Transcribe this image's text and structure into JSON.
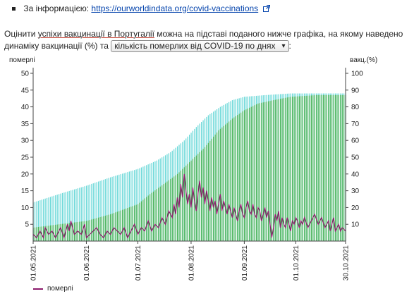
{
  "info": {
    "label": "За інформацією:",
    "link_text": "https://ourworldindata.org/covid-vaccinations"
  },
  "paragraph": {
    "part1": "Оцінити ",
    "link1": "успіхи вакцинації в Португалії",
    "part2": " можна на підставі поданого нижче графіка, на якому наведено динаміку вакцинації (%) та ",
    "select_value": "кількість померлих від COVID-19 по днях",
    "part3": ":"
  },
  "colors": {
    "deaths_line": "#8b1a6b",
    "vacc_full": "#3aa83a",
    "vacc_partial": "#33c9c9",
    "link": "#0645ad"
  },
  "chart_data": {
    "type": "bar",
    "left_axis": {
      "label": "померлі",
      "min": 0,
      "max": 50,
      "ticks": [
        5,
        10,
        15,
        20,
        25,
        30,
        35,
        40,
        45,
        50
      ]
    },
    "right_axis": {
      "label": "вакц.(%)",
      "min": 0,
      "max": 100,
      "ticks": [
        10,
        20,
        30,
        40,
        50,
        60,
        70,
        80,
        90,
        100
      ]
    },
    "x_ticks": [
      "01.05.2021",
      "01.06.2021",
      "01.07.2021",
      "01.08.2021",
      "01.09.2021",
      "01.10.2021",
      "30.10.2021"
    ],
    "x_tick_days": [
      0,
      31,
      61,
      92,
      123,
      153,
      182
    ],
    "legend": [
      "померлі"
    ],
    "series": [
      {
        "name": "померлі",
        "type": "line",
        "points": [
          [
            0,
            2
          ],
          [
            2,
            1
          ],
          [
            4,
            3
          ],
          [
            6,
            1
          ],
          [
            7,
            4
          ],
          [
            9,
            2
          ],
          [
            11,
            3
          ],
          [
            13,
            1
          ],
          [
            14,
            2
          ],
          [
            16,
            4
          ],
          [
            18,
            1
          ],
          [
            20,
            5
          ],
          [
            21,
            3
          ],
          [
            22,
            6
          ],
          [
            24,
            2
          ],
          [
            26,
            3
          ],
          [
            28,
            2
          ],
          [
            30,
            5
          ],
          [
            31,
            1
          ],
          [
            33,
            2
          ],
          [
            35,
            3
          ],
          [
            37,
            4
          ],
          [
            39,
            2
          ],
          [
            41,
            1
          ],
          [
            43,
            3
          ],
          [
            45,
            2
          ],
          [
            47,
            4
          ],
          [
            49,
            3
          ],
          [
            51,
            2
          ],
          [
            53,
            4
          ],
          [
            55,
            1
          ],
          [
            57,
            3
          ],
          [
            59,
            5
          ],
          [
            61,
            2
          ],
          [
            63,
            4
          ],
          [
            65,
            3
          ],
          [
            67,
            6
          ],
          [
            69,
            3
          ],
          [
            71,
            5
          ],
          [
            73,
            4
          ],
          [
            75,
            7
          ],
          [
            77,
            5
          ],
          [
            79,
            9
          ],
          [
            81,
            7
          ],
          [
            82,
            11
          ],
          [
            83,
            8
          ],
          [
            84,
            13
          ],
          [
            85,
            10
          ],
          [
            86,
            17
          ],
          [
            87,
            13
          ],
          [
            88,
            20
          ],
          [
            89,
            15
          ],
          [
            90,
            11
          ],
          [
            91,
            14
          ],
          [
            92,
            10
          ],
          [
            93,
            16
          ],
          [
            94,
            12
          ],
          [
            95,
            9
          ],
          [
            96,
            14
          ],
          [
            97,
            18
          ],
          [
            98,
            13
          ],
          [
            99,
            16
          ],
          [
            100,
            11
          ],
          [
            101,
            15
          ],
          [
            102,
            12
          ],
          [
            103,
            9
          ],
          [
            104,
            13
          ],
          [
            105,
            10
          ],
          [
            106,
            12
          ],
          [
            107,
            8
          ],
          [
            108,
            11
          ],
          [
            109,
            14
          ],
          [
            110,
            9
          ],
          [
            111,
            12
          ],
          [
            112,
            10
          ],
          [
            113,
            8
          ],
          [
            114,
            11
          ],
          [
            115,
            9
          ],
          [
            116,
            7
          ],
          [
            117,
            10
          ],
          [
            118,
            8
          ],
          [
            119,
            6
          ],
          [
            120,
            9
          ],
          [
            121,
            11
          ],
          [
            122,
            8
          ],
          [
            123,
            7
          ],
          [
            124,
            10
          ],
          [
            125,
            12
          ],
          [
            126,
            9
          ],
          [
            127,
            8
          ],
          [
            128,
            11
          ],
          [
            129,
            8
          ],
          [
            130,
            7
          ],
          [
            131,
            10
          ],
          [
            132,
            9
          ],
          [
            133,
            6
          ],
          [
            134,
            8
          ],
          [
            135,
            10
          ],
          [
            136,
            7
          ],
          [
            137,
            9
          ],
          [
            138,
            5
          ],
          [
            139,
            1
          ],
          [
            140,
            4
          ],
          [
            141,
            8
          ],
          [
            142,
            6
          ],
          [
            143,
            9
          ],
          [
            144,
            4
          ],
          [
            145,
            7
          ],
          [
            146,
            5
          ],
          [
            147,
            4
          ],
          [
            148,
            7
          ],
          [
            149,
            5
          ],
          [
            150,
            3
          ],
          [
            151,
            6
          ],
          [
            152,
            5
          ],
          [
            153,
            7
          ],
          [
            154,
            6
          ],
          [
            155,
            4
          ],
          [
            156,
            6
          ],
          [
            157,
            5
          ],
          [
            158,
            7
          ],
          [
            160,
            4
          ],
          [
            162,
            6
          ],
          [
            164,
            8
          ],
          [
            166,
            5
          ],
          [
            168,
            7
          ],
          [
            170,
            4
          ],
          [
            172,
            6
          ],
          [
            173,
            3
          ],
          [
            174,
            5
          ],
          [
            175,
            7
          ],
          [
            176,
            3
          ],
          [
            177,
            4
          ],
          [
            178,
            5
          ],
          [
            179,
            3
          ],
          [
            180,
            4
          ],
          [
            182,
            3
          ]
        ]
      },
      {
        "name": "vacc_partial",
        "type": "bar",
        "points": [
          [
            0,
            23
          ],
          [
            15,
            28
          ],
          [
            31,
            33
          ],
          [
            45,
            38
          ],
          [
            61,
            43
          ],
          [
            72,
            48
          ],
          [
            80,
            53
          ],
          [
            88,
            60
          ],
          [
            95,
            68
          ],
          [
            102,
            75
          ],
          [
            109,
            80
          ],
          [
            116,
            84
          ],
          [
            123,
            86
          ],
          [
            135,
            87
          ],
          [
            150,
            88
          ],
          [
            182,
            88
          ]
        ]
      },
      {
        "name": "vacc_full",
        "type": "bar",
        "points": [
          [
            0,
            8
          ],
          [
            15,
            10
          ],
          [
            31,
            12
          ],
          [
            45,
            16
          ],
          [
            61,
            22
          ],
          [
            68,
            28
          ],
          [
            76,
            34
          ],
          [
            84,
            40
          ],
          [
            92,
            48
          ],
          [
            100,
            56
          ],
          [
            108,
            66
          ],
          [
            116,
            73
          ],
          [
            123,
            78
          ],
          [
            131,
            82
          ],
          [
            140,
            84
          ],
          [
            150,
            86
          ],
          [
            165,
            87
          ],
          [
            182,
            87
          ]
        ]
      }
    ]
  }
}
